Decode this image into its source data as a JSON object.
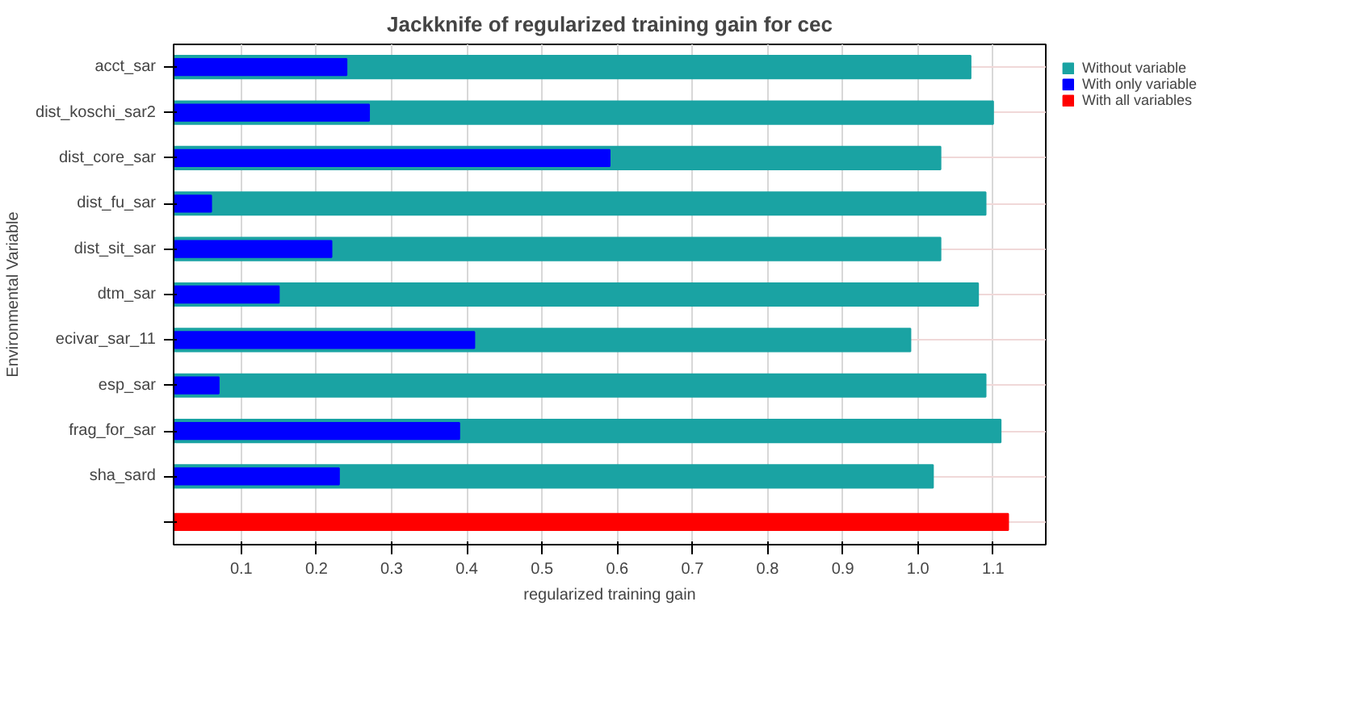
{
  "chart_data": {
    "type": "bar",
    "orientation": "horizontal",
    "title": "Jackknife of regularized training gain for cec",
    "xlabel": "regularized training gain",
    "ylabel": "Environmental Variable",
    "categories": [
      "acct_sar",
      "dist_koschi_sar2",
      "dist_core_sar",
      "dist_fu_sar",
      "dist_sit_sar",
      "dtm_sar",
      "ecivar_sar_11",
      "esp_sar",
      "frag_for_sar",
      "sha_sard",
      null
    ],
    "series": [
      {
        "name": "Without variable",
        "color": "#1aa3a3",
        "values": [
          1.07,
          1.1,
          1.03,
          1.09,
          1.03,
          1.08,
          0.99,
          1.09,
          1.11,
          1.02,
          null
        ]
      },
      {
        "name": "With only variable",
        "color": "#0000ff",
        "values": [
          0.24,
          0.27,
          0.59,
          0.06,
          0.22,
          0.15,
          0.41,
          0.07,
          0.39,
          0.23,
          null
        ]
      },
      {
        "name": "With all variables",
        "color": "#ff0000",
        "values": [
          null,
          null,
          null,
          null,
          null,
          null,
          null,
          null,
          null,
          null,
          1.12
        ]
      }
    ],
    "xlim": [
      0.01,
      1.17
    ],
    "xticks": [
      0.1,
      0.2,
      0.3,
      0.4,
      0.5,
      0.6,
      0.7,
      0.8,
      0.9,
      {
        "value": 1.0,
        "label": "1.0"
      },
      1.1
    ],
    "grid": true,
    "legend": "top right"
  }
}
